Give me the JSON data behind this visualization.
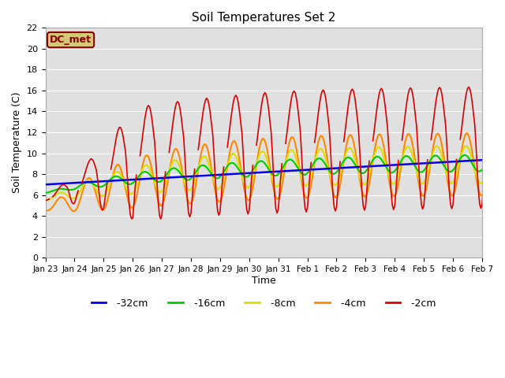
{
  "title": "Soil Temperatures Set 2",
  "xlabel": "Time",
  "ylabel": "Soil Temperature (C)",
  "ylim": [
    0,
    22
  ],
  "yticks": [
    0,
    2,
    4,
    6,
    8,
    10,
    12,
    14,
    16,
    18,
    20,
    22
  ],
  "bg_color": "#e0e0e0",
  "fig_color": "#ffffff",
  "annotation_text": "DC_met",
  "annotation_color": "#8b0000",
  "annotation_bg": "#d4c878",
  "series": {
    "-32cm": {
      "color": "#0000ee",
      "linewidth": 1.8
    },
    "-16cm": {
      "color": "#00cc00",
      "linewidth": 1.5
    },
    "-8cm": {
      "color": "#dddd00",
      "linewidth": 1.5
    },
    "-4cm": {
      "color": "#ff8800",
      "linewidth": 1.5
    },
    "-2cm": {
      "color": "#dd0000",
      "linewidth": 1.2
    }
  },
  "tick_labels": [
    "Jan 23",
    "Jan 24",
    "Jan 25",
    "Jan 26",
    "Jan 27",
    "Jan 28",
    "Jan 29",
    "Jan 30",
    "Jan 31",
    "Feb 1",
    "Feb 2",
    "Feb 3",
    "Feb 4",
    "Feb 5",
    "Feb 6",
    "Feb 7"
  ]
}
